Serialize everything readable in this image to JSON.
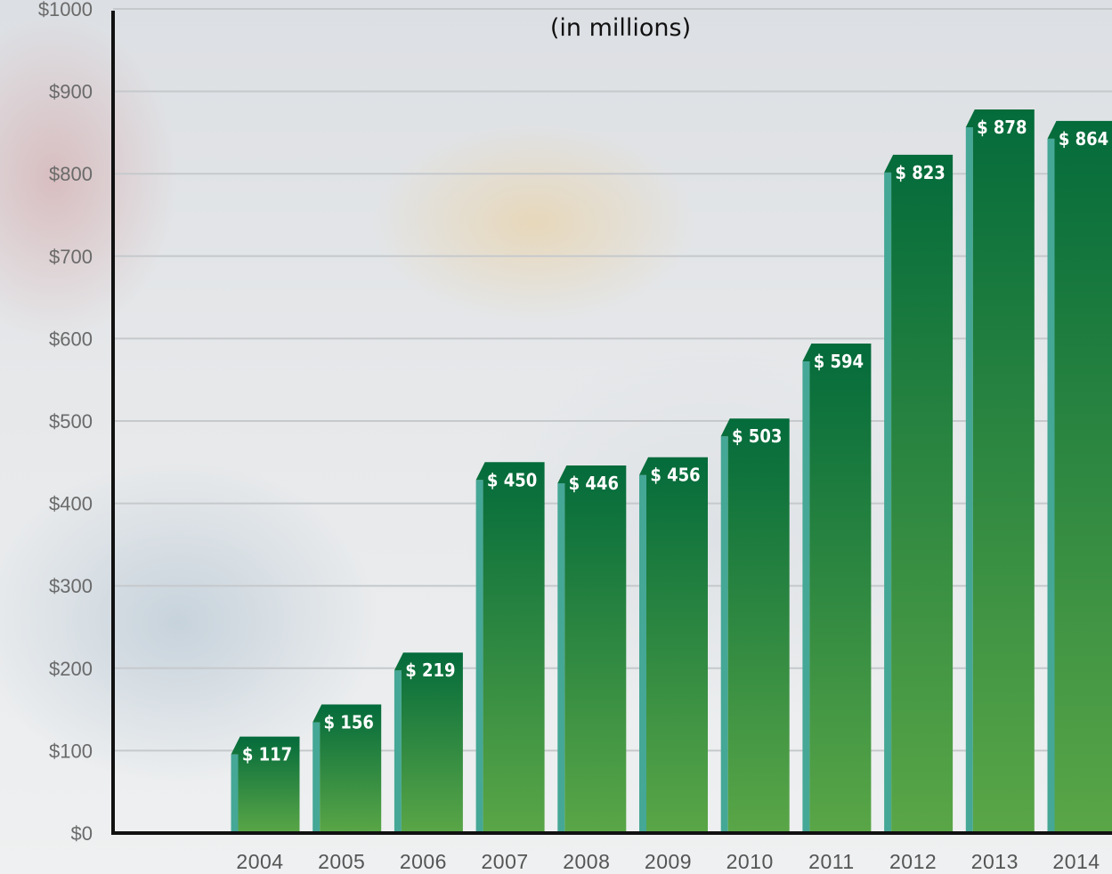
{
  "chart_data": {
    "type": "bar",
    "title_partial": "(in millions)",
    "categories": [
      "2004",
      "2005",
      "2006",
      "2007",
      "2008",
      "2009",
      "2010",
      "2011",
      "2012",
      "2013",
      "2014"
    ],
    "values": [
      117,
      156,
      219,
      450,
      446,
      456,
      503,
      594,
      823,
      878,
      864
    ],
    "data_labels": [
      "$ 117",
      "$ 156",
      "$ 219",
      "$ 450",
      "$ 446",
      "$ 456",
      "$ 503",
      "$ 594",
      "$ 823",
      "$ 878",
      "$ 864"
    ],
    "y_ticks": [
      0,
      100,
      200,
      300,
      400,
      500,
      600,
      700,
      800,
      900,
      1000
    ],
    "y_tick_labels": [
      "$0",
      "$100",
      "$200",
      "$300",
      "$400",
      "$500",
      "$600",
      "$700",
      "$800",
      "$900",
      "$1000"
    ],
    "ylim": [
      0,
      1000
    ],
    "grid": true,
    "colors": {
      "bar_top": "#046b3b",
      "bar_bottom": "#5aa647",
      "bar_side": "#45a796",
      "axis": "#111111",
      "grid": "#c6c9cc"
    }
  }
}
